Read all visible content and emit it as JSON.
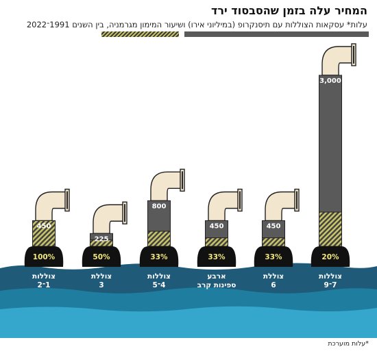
{
  "title": "המחיר עלה בזמן שהסבסוד ירד",
  "subtitle": "עלות* עסקאות הצוללות עם תיסנקרופ (במיליוני אירו) ושיעור המימון מגרמניה, בין השנים 1991־2022",
  "footnote": "*עלות מוערכת",
  "colors": {
    "cost": "#5a5a5a",
    "subsidy_hatch": "#c9c46a",
    "sea_top": "#1f5a78",
    "sea_mid": "#1f7ea0",
    "sea_low": "#35a7cd",
    "pipe": "#f2e6cf"
  },
  "chart_data": {
    "type": "bar",
    "series": [
      {
        "name": "עלות עסקאות הצוללות (במיליוני אירו)",
        "values": [
          3000,
          450,
          450,
          800,
          225,
          450
        ]
      },
      {
        "name": "שיעור המימון מגרמניה",
        "values": [
          20,
          33,
          33,
          33,
          50,
          100
        ]
      }
    ],
    "categories": [
      [
        "צוללות",
        "7־9"
      ],
      [
        "צוללת",
        "6"
      ],
      [
        "ארבע",
        "ספינות קרב"
      ],
      [
        "צוללות",
        "4־5"
      ],
      [
        "צוללת",
        "3"
      ],
      [
        "צוללות",
        "1־2"
      ]
    ],
    "value_labels": [
      "3,000",
      "450",
      "450",
      "800",
      "225",
      "450"
    ],
    "percent_labels": [
      "20%",
      "33%",
      "33%",
      "33%",
      "50%",
      "100%"
    ]
  }
}
